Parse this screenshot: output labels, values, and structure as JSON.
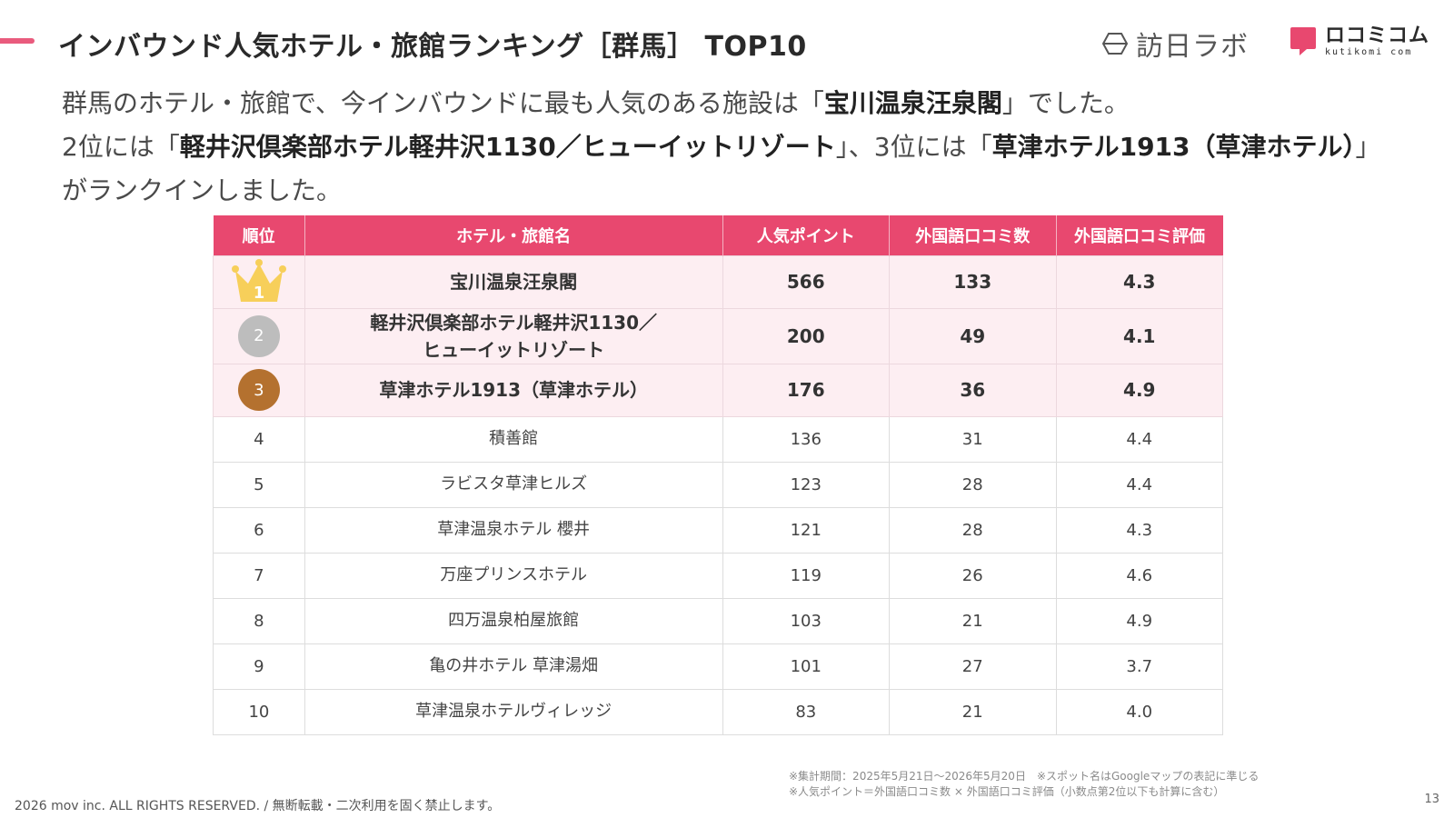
{
  "header": {
    "title": "インバウンド人気ホテル・旅館ランキング［群馬］ TOP10",
    "logo_houmon_text": "訪日ラボ",
    "logo_kuchikomi_text": "ロコミコム",
    "logo_kuchikomi_sub": "kutikomi com",
    "accent_color": "#e95b7d"
  },
  "intro": {
    "line1_pre": "群馬のホテル・旅館で、今インバウンドに最も人気のある施設は「",
    "line1_bold": "宝川温泉汪泉閣",
    "line1_post": "」でした。",
    "line2_pre": "2位には「",
    "line2_bold": "軽井沢倶楽部ホテル軽井沢1130／ヒューイットリゾート",
    "line2_mid": "」、3位には「",
    "line2_bold2": "草津ホテル1913（草津ホテル）",
    "line2_post": "」がランクインしました。"
  },
  "table": {
    "columns": [
      "順位",
      "ホテル・旅館名",
      "人気ポイント",
      "外国語口コミ数",
      "外国語口コミ評価"
    ],
    "rows": [
      {
        "rank": "1",
        "name": "宝川温泉汪泉閣",
        "points": "566",
        "reviews": "133",
        "rating": "4.3"
      },
      {
        "rank": "2",
        "name_line1": "軽井沢倶楽部ホテル軽井沢1130／",
        "name_line2": "ヒューイットリゾート",
        "points": "200",
        "reviews": "49",
        "rating": "4.1"
      },
      {
        "rank": "3",
        "name": "草津ホテル1913（草津ホテル）",
        "points": "176",
        "reviews": "36",
        "rating": "4.9"
      },
      {
        "rank": "4",
        "name": "積善館",
        "points": "136",
        "reviews": "31",
        "rating": "4.4"
      },
      {
        "rank": "5",
        "name": "ラビスタ草津ヒルズ",
        "points": "123",
        "reviews": "28",
        "rating": "4.4"
      },
      {
        "rank": "6",
        "name": "草津温泉ホテル 櫻井",
        "points": "121",
        "reviews": "28",
        "rating": "4.3"
      },
      {
        "rank": "7",
        "name": "万座プリンスホテル",
        "points": "119",
        "reviews": "26",
        "rating": "4.6"
      },
      {
        "rank": "8",
        "name": "四万温泉柏屋旅館",
        "points": "103",
        "reviews": "21",
        "rating": "4.9"
      },
      {
        "rank": "9",
        "name": "亀の井ホテル 草津湯畑",
        "points": "101",
        "reviews": "27",
        "rating": "3.7"
      },
      {
        "rank": "10",
        "name": "草津温泉ホテルヴィレッジ",
        "points": "83",
        "reviews": "21",
        "rating": "4.0"
      }
    ],
    "header_color": "#e8486f",
    "top_row_color": "#fdeef2",
    "icons": {
      "rank1": "crown-icon",
      "rank2": "silver-medal-icon",
      "rank3": "bronze-medal-icon"
    }
  },
  "notes": {
    "line1": "※集計期間：2025年5月21日〜2026年5月20日　※スポット名はGoogleマップの表記に準じる",
    "line2": "※人気ポイント＝外国語口コミ数 × 外国語口コミ評価（小数点第2位以下も計算に含む）"
  },
  "footer": {
    "copyright": "2026 mov inc. ALL RIGHTS RESERVED. / 無断転載・二次利用を固く禁止します。",
    "page_number": "13"
  }
}
